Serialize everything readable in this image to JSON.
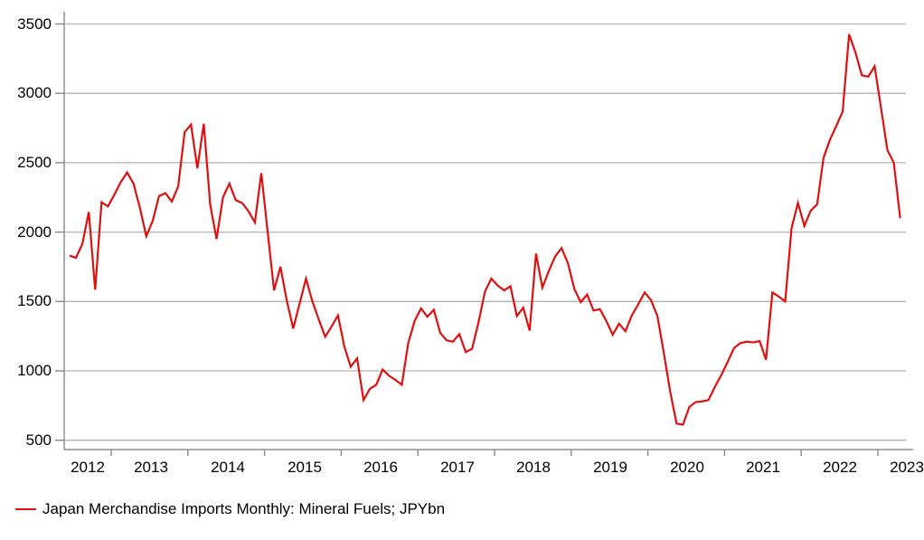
{
  "legend": {
    "label": "Japan Merchandise Imports Monthly: Mineral Fuels; JPYbn"
  },
  "colors": {
    "series": "#de1010",
    "gridline": "#b3b3b3",
    "axis": "#8f8f8f",
    "text": "#000000",
    "background": "#ffffff"
  },
  "chart_data": {
    "type": "line",
    "title": "",
    "xlabel": "",
    "ylabel": "",
    "unit": "JPYbn",
    "frequency": "monthly",
    "start_month": "2012-06",
    "end_month": "2023-04",
    "grid": true,
    "legend_position": "bottom-left",
    "ylim": [
      500,
      3500
    ],
    "y_ticks": [
      3500,
      3000,
      2500,
      2000,
      1500,
      1000,
      500
    ],
    "x_tick_labels": [
      "2012",
      "2013",
      "2014",
      "2015",
      "2016",
      "2017",
      "2018",
      "2019",
      "2020",
      "2021",
      "2022",
      "2023"
    ],
    "series": [
      {
        "name": "Japan Merchandise Imports Monthly: Mineral Fuels; JPYbn",
        "color": "#de1010",
        "values": [
          1830,
          1815,
          1915,
          2145,
          1585,
          2215,
          2185,
          2270,
          2360,
          2430,
          2350,
          2175,
          1970,
          2080,
          2260,
          2280,
          2220,
          2330,
          2720,
          2775,
          2460,
          2780,
          2200,
          1950,
          2250,
          2350,
          2230,
          2210,
          2150,
          2070,
          2425,
          2000,
          1580,
          1750,
          1505,
          1305,
          1485,
          1665,
          1500,
          1370,
          1245,
          1320,
          1400,
          1175,
          1030,
          1090,
          790,
          870,
          900,
          1010,
          965,
          935,
          900,
          1200,
          1360,
          1450,
          1390,
          1440,
          1275,
          1220,
          1210,
          1265,
          1135,
          1160,
          1350,
          1570,
          1665,
          1615,
          1580,
          1610,
          1395,
          1455,
          1290,
          1845,
          1600,
          1720,
          1825,
          1885,
          1775,
          1590,
          1495,
          1550,
          1435,
          1445,
          1360,
          1260,
          1340,
          1285,
          1400,
          1480,
          1565,
          1510,
          1395,
          1130,
          850,
          620,
          612,
          740,
          775,
          780,
          790,
          885,
          970,
          1065,
          1165,
          1200,
          1210,
          1205,
          1215,
          1080,
          1565,
          1535,
          1500,
          2030,
          2210,
          2045,
          2155,
          2200,
          2535,
          2665,
          2765,
          2870,
          3425,
          3295,
          3130,
          3120,
          3195,
          2895,
          2590,
          2500,
          2100
        ]
      }
    ]
  }
}
